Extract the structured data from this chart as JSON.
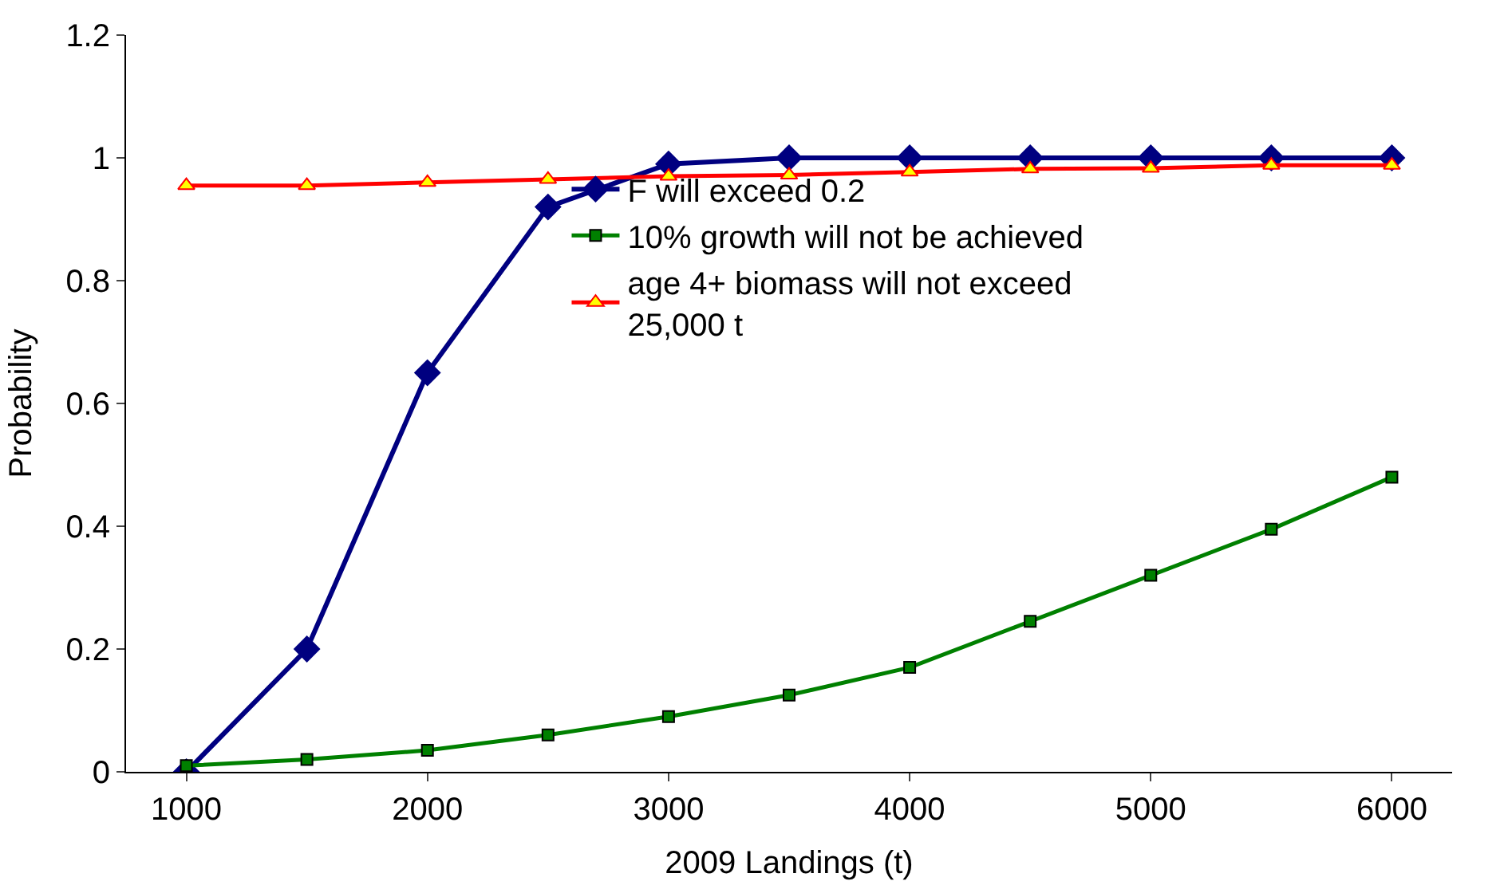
{
  "chart_data": {
    "type": "line",
    "xlabel": "2009 Landings (t)",
    "ylabel": "Probability",
    "x": [
      1000,
      1500,
      2000,
      2500,
      3000,
      3500,
      4000,
      4500,
      5000,
      5500,
      6000
    ],
    "xlim": [
      750,
      6250
    ],
    "xticks": [
      1000,
      2000,
      3000,
      4000,
      5000,
      6000
    ],
    "ylim": [
      0,
      1.2
    ],
    "yticks": [
      0,
      0.2,
      0.4,
      0.6,
      0.8,
      1,
      1.2
    ],
    "legend": "right",
    "line_style": "solid",
    "series": [
      {
        "name": "F will exceed 0.2",
        "color": "#000080",
        "marker": "diamond",
        "values": [
          0,
          0.2,
          0.65,
          0.92,
          0.99,
          1,
          1,
          1,
          1,
          1,
          1
        ]
      },
      {
        "name": "10% growth will not be achieved",
        "color": "#008000",
        "marker": "square",
        "values": [
          0.01,
          0.02,
          0.035,
          0.06,
          0.09,
          0.125,
          0.17,
          0.245,
          0.32,
          0.395,
          0.48
        ]
      },
      {
        "name": "age 4+ biomass will not exceed 25,000 t",
        "color": "#ff0000",
        "marker": "triangle",
        "values": [
          0.955,
          0.955,
          0.96,
          0.965,
          0.97,
          0.972,
          0.977,
          0.982,
          0.983,
          0.988,
          0.988
        ]
      }
    ]
  }
}
